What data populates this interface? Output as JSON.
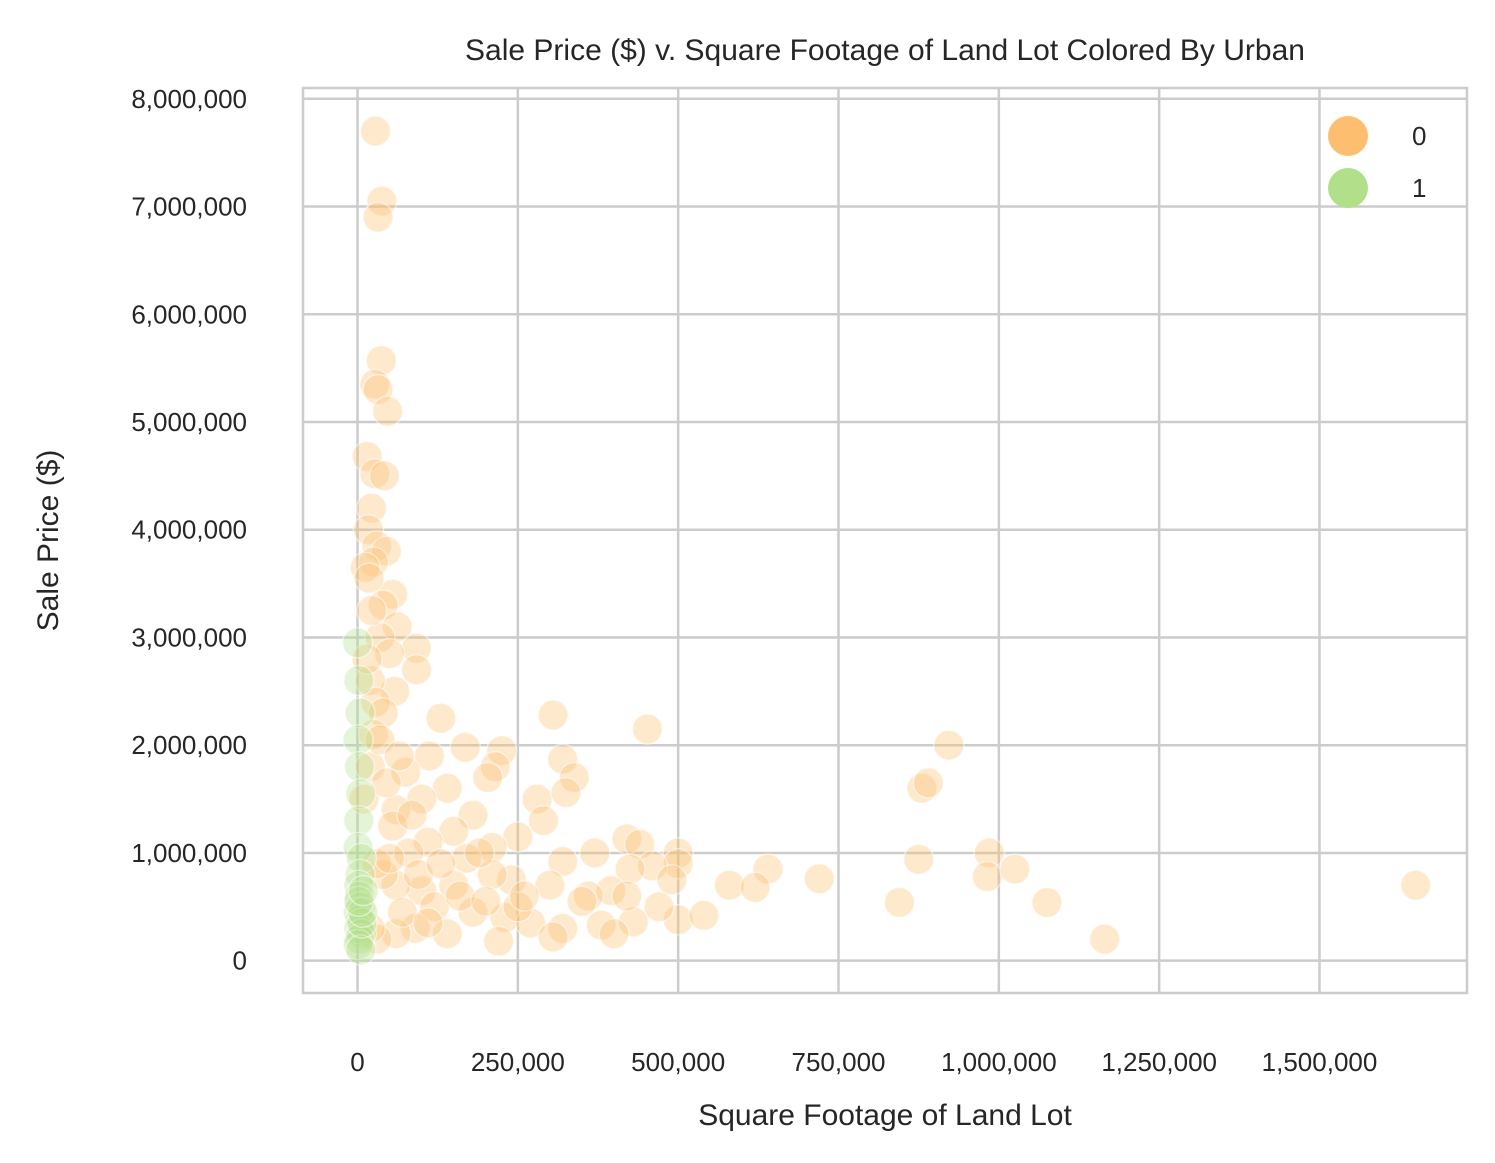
{
  "chart_data": {
    "type": "scatter",
    "title": "Sale Price ($) v. Square Footage of Land Lot Colored By Urban",
    "xlabel": "Square Footage of Land Lot",
    "ylabel": "Sale Price ($)",
    "xlim": [
      -85000,
      1730000
    ],
    "ylim": [
      -300000,
      8100000
    ],
    "x_ticks": [
      0,
      250000,
      500000,
      750000,
      1000000,
      1250000,
      1500000
    ],
    "x_tick_labels": [
      "0",
      "250,000",
      "500,000",
      "750,000",
      "1,000,000",
      "1,250,000",
      "1,500,000"
    ],
    "y_ticks": [
      0,
      1000000,
      2000000,
      3000000,
      4000000,
      5000000,
      6000000,
      7000000,
      8000000
    ],
    "y_tick_labels": [
      "0",
      "1,000,000",
      "2,000,000",
      "3,000,000",
      "4,000,000",
      "5,000,000",
      "6,000,000",
      "7,000,000",
      "8,000,000"
    ],
    "grid": true,
    "legend_position": "top-right",
    "colors": {
      "0": "#fdbf6f",
      "1": "#b2df8a"
    },
    "point_alpha": 0.35,
    "series": [
      {
        "name": "0",
        "points": [
          [
            28000,
            7700000
          ],
          [
            38000,
            7050000
          ],
          [
            32000,
            6900000
          ],
          [
            37000,
            5570000
          ],
          [
            27000,
            5350000
          ],
          [
            32000,
            5300000
          ],
          [
            47000,
            5100000
          ],
          [
            15000,
            4680000
          ],
          [
            27000,
            4520000
          ],
          [
            42000,
            4500000
          ],
          [
            22000,
            4200000
          ],
          [
            17000,
            4000000
          ],
          [
            30000,
            3850000
          ],
          [
            45000,
            3800000
          ],
          [
            25000,
            3700000
          ],
          [
            12000,
            3650000
          ],
          [
            55000,
            3400000
          ],
          [
            40000,
            3300000
          ],
          [
            62000,
            3100000
          ],
          [
            35000,
            3000000
          ],
          [
            92000,
            2900000
          ],
          [
            50000,
            2850000
          ],
          [
            92000,
            2700000
          ],
          [
            58000,
            2500000
          ],
          [
            20000,
            2600000
          ],
          [
            28000,
            2400000
          ],
          [
            40000,
            2300000
          ],
          [
            130000,
            2250000
          ],
          [
            305000,
            2280000
          ],
          [
            452000,
            2150000
          ],
          [
            168000,
            1980000
          ],
          [
            225000,
            1950000
          ],
          [
            112000,
            1900000
          ],
          [
            320000,
            1870000
          ],
          [
            215000,
            1800000
          ],
          [
            338000,
            1700000
          ],
          [
            280000,
            1500000
          ],
          [
            325000,
            1560000
          ],
          [
            203000,
            1700000
          ],
          [
            75000,
            1750000
          ],
          [
            140000,
            1600000
          ],
          [
            100000,
            1500000
          ],
          [
            60000,
            1400000
          ],
          [
            180000,
            1350000
          ],
          [
            290000,
            1300000
          ],
          [
            250000,
            1150000
          ],
          [
            150000,
            1200000
          ],
          [
            110000,
            1100000
          ],
          [
            420000,
            1130000
          ],
          [
            440000,
            1080000
          ],
          [
            500000,
            1000000
          ],
          [
            370000,
            1000000
          ],
          [
            210000,
            1050000
          ],
          [
            80000,
            1000000
          ],
          [
            170000,
            950000
          ],
          [
            320000,
            920000
          ],
          [
            500000,
            900000
          ],
          [
            460000,
            880000
          ],
          [
            425000,
            850000
          ],
          [
            640000,
            850000
          ],
          [
            720000,
            760000
          ],
          [
            580000,
            700000
          ],
          [
            620000,
            680000
          ],
          [
            490000,
            750000
          ],
          [
            395000,
            650000
          ],
          [
            360000,
            600000
          ],
          [
            300000,
            700000
          ],
          [
            240000,
            750000
          ],
          [
            210000,
            800000
          ],
          [
            150000,
            700000
          ],
          [
            100000,
            650000
          ],
          [
            60000,
            700000
          ],
          [
            40000,
            800000
          ],
          [
            30000,
            900000
          ],
          [
            50000,
            950000
          ],
          [
            120000,
            500000
          ],
          [
            180000,
            450000
          ],
          [
            230000,
            400000
          ],
          [
            270000,
            350000
          ],
          [
            320000,
            300000
          ],
          [
            380000,
            330000
          ],
          [
            430000,
            360000
          ],
          [
            500000,
            380000
          ],
          [
            540000,
            420000
          ],
          [
            470000,
            500000
          ],
          [
            400000,
            250000
          ],
          [
            305000,
            220000
          ],
          [
            220000,
            180000
          ],
          [
            140000,
            250000
          ],
          [
            90000,
            300000
          ],
          [
            60000,
            250000
          ],
          [
            30000,
            200000
          ],
          [
            20000,
            300000
          ],
          [
            70000,
            450000
          ],
          [
            110000,
            350000
          ],
          [
            160000,
            600000
          ],
          [
            200000,
            550000
          ],
          [
            250000,
            500000
          ],
          [
            350000,
            550000
          ],
          [
            420000,
            600000
          ],
          [
            10000,
            1500000
          ],
          [
            20000,
            1800000
          ],
          [
            25000,
            2100000
          ],
          [
            15000,
            2800000
          ],
          [
            22000,
            3250000
          ],
          [
            18000,
            3550000
          ],
          [
            35000,
            2050000
          ],
          [
            45000,
            1650000
          ],
          [
            55000,
            1250000
          ],
          [
            65000,
            1900000
          ],
          [
            85000,
            1350000
          ],
          [
            95000,
            800000
          ],
          [
            130000,
            900000
          ],
          [
            190000,
            1000000
          ],
          [
            260000,
            600000
          ],
          [
            880000,
            1600000
          ],
          [
            890000,
            1650000
          ],
          [
            922000,
            2000000
          ],
          [
            875000,
            940000
          ],
          [
            985000,
            1000000
          ],
          [
            982000,
            780000
          ],
          [
            1025000,
            850000
          ],
          [
            1075000,
            540000
          ],
          [
            845000,
            540000
          ],
          [
            1165000,
            200000
          ],
          [
            1650000,
            700000
          ]
        ]
      },
      {
        "name": "1",
        "points": [
          [
            0,
            2950000
          ],
          [
            2000,
            2600000
          ],
          [
            4000,
            2300000
          ],
          [
            1000,
            2050000
          ],
          [
            3000,
            1800000
          ],
          [
            5000,
            1550000
          ],
          [
            2000,
            1300000
          ],
          [
            1000,
            1050000
          ],
          [
            6000,
            950000
          ],
          [
            4000,
            800000
          ],
          [
            2000,
            700000
          ],
          [
            3000,
            600000
          ],
          [
            5000,
            500000
          ],
          [
            1000,
            450000
          ],
          [
            4000,
            380000
          ],
          [
            2000,
            300000
          ],
          [
            6000,
            250000
          ],
          [
            3000,
            200000
          ],
          [
            1000,
            150000
          ],
          [
            5000,
            100000
          ],
          [
            7000,
            350000
          ],
          [
            8000,
            450000
          ],
          [
            2000,
            550000
          ],
          [
            9000,
            650000
          ]
        ]
      }
    ]
  }
}
